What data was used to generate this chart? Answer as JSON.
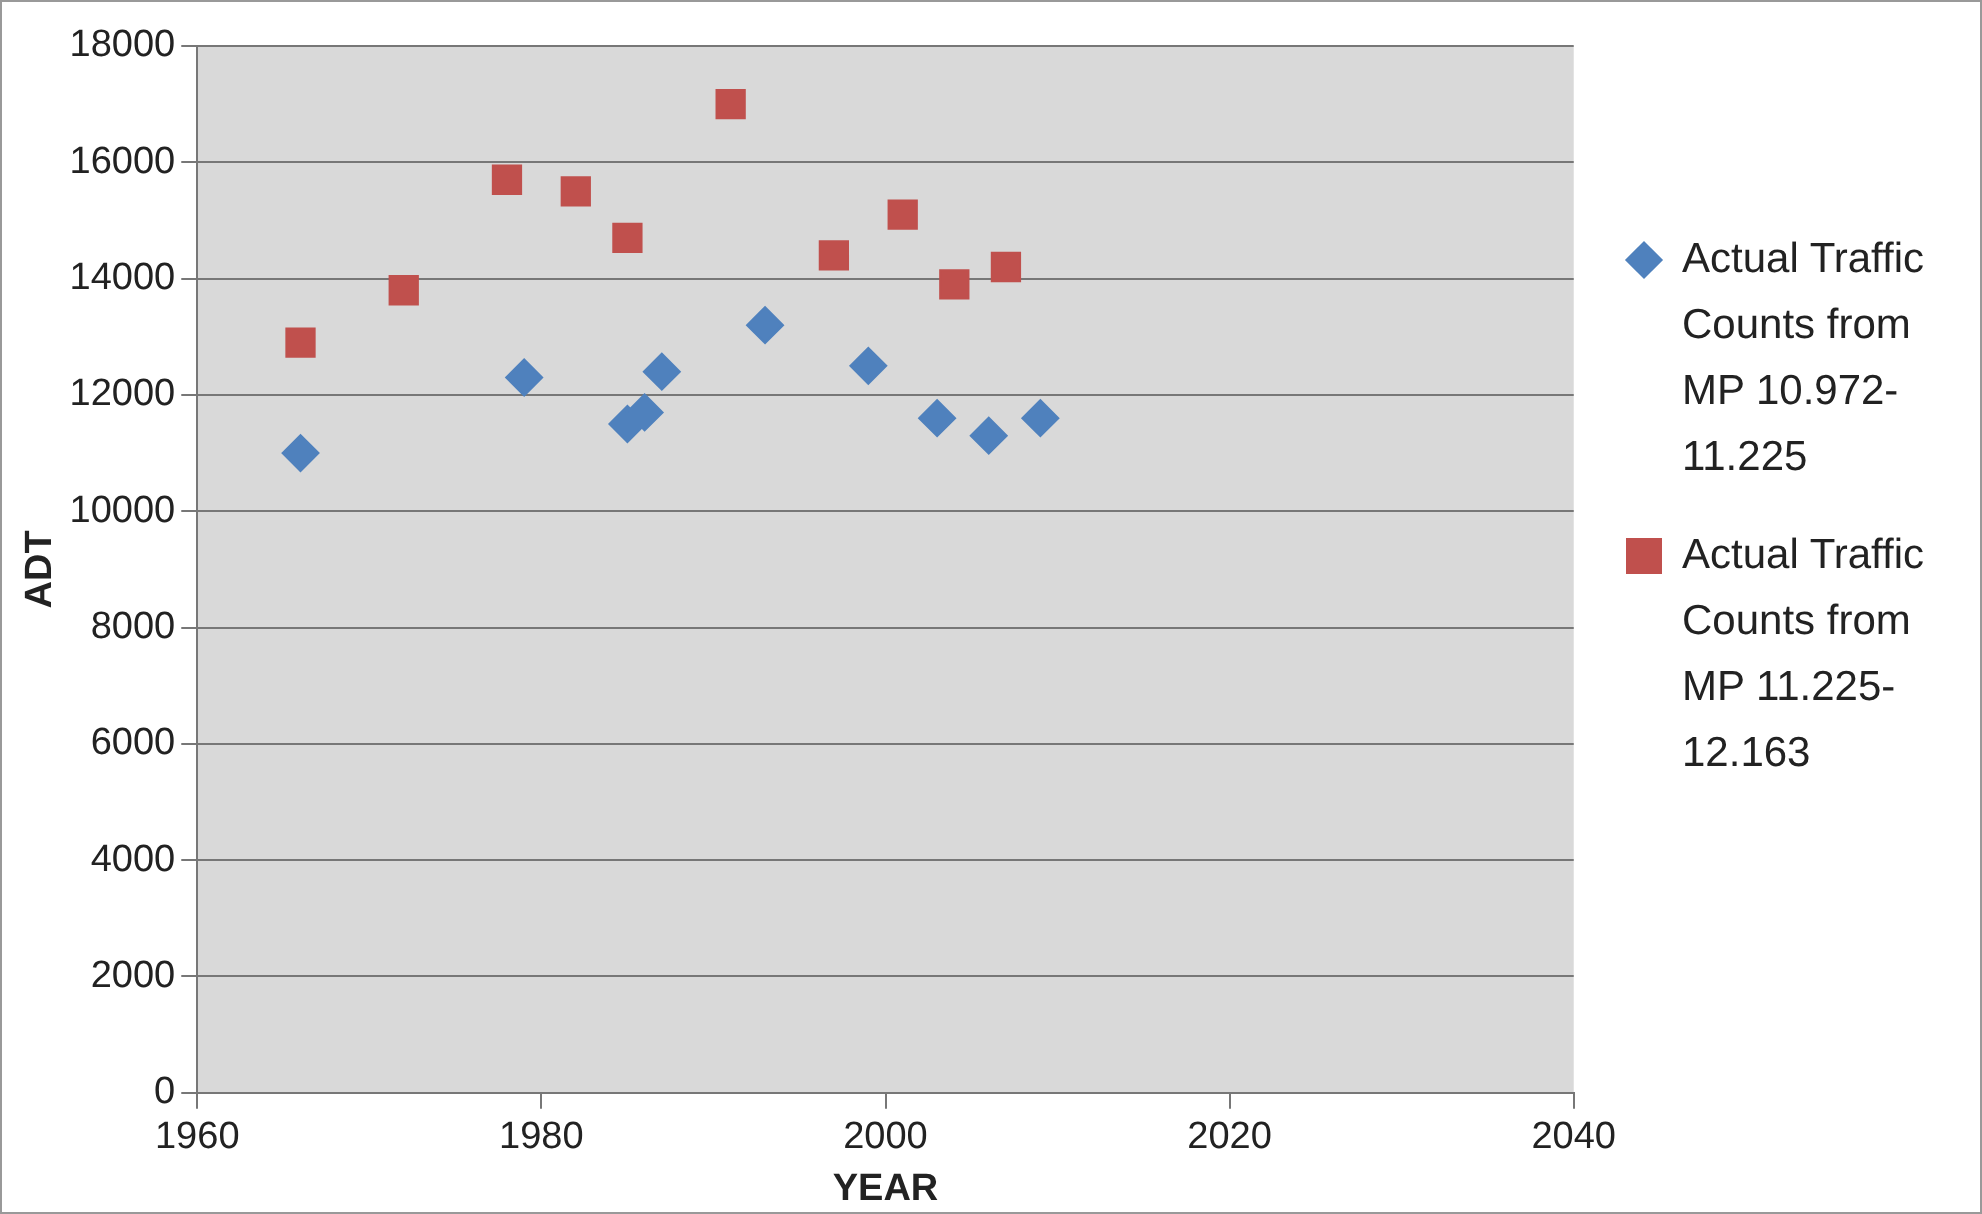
{
  "chart_data": {
    "type": "scatter",
    "xlabel": "YEAR",
    "ylabel": "ADT",
    "xlim": [
      1960,
      2040
    ],
    "xticks": [
      1960,
      1980,
      2000,
      2020,
      2040
    ],
    "ylim": [
      0,
      18000
    ],
    "yticks": [
      0,
      2000,
      4000,
      6000,
      8000,
      10000,
      12000,
      14000,
      16000,
      18000
    ],
    "grid": "y",
    "legend": "right",
    "series": [
      {
        "name": "Actual Traffic Counts from MP 10.972-11.225",
        "color": "#4f81bd",
        "marker": "diamond",
        "x": [
          1966,
          1979,
          1985,
          1986,
          1987,
          1993,
          1999,
          2003,
          2006,
          2009
        ],
        "values": [
          11000,
          12300,
          11500,
          11700,
          12400,
          13200,
          12500,
          11600,
          11300,
          11600
        ]
      },
      {
        "name": "Actual Traffic Counts from MP 11.225-12.163",
        "color": "#c0504d",
        "marker": "square",
        "x": [
          1966,
          1972,
          1978,
          1982,
          1985,
          1991,
          1997,
          2001,
          2004,
          2007
        ],
        "values": [
          12900,
          13800,
          15700,
          15500,
          14700,
          17000,
          14400,
          15100,
          13900,
          14200
        ]
      }
    ]
  }
}
